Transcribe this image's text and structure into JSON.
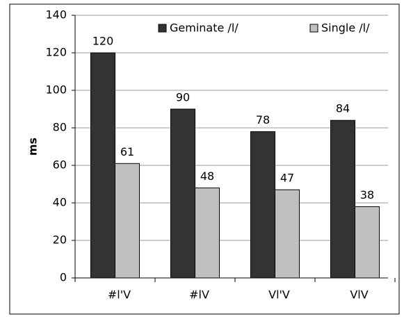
{
  "chart_data": {
    "type": "bar",
    "ylabel": "ms",
    "categories": [
      "#l'V",
      "#lV",
      "Vl'V",
      "VlV"
    ],
    "series": [
      {
        "name": "Geminate /l/",
        "color": "#333333",
        "values": [
          120,
          90,
          78,
          84
        ]
      },
      {
        "name": "Single /l/",
        "color": "#c0c0c0",
        "values": [
          61,
          48,
          47,
          38
        ]
      }
    ],
    "ylim": [
      0,
      140
    ],
    "yticks": [
      0,
      20,
      40,
      60,
      80,
      100,
      120,
      140
    ],
    "grid": true,
    "legend": "top"
  }
}
